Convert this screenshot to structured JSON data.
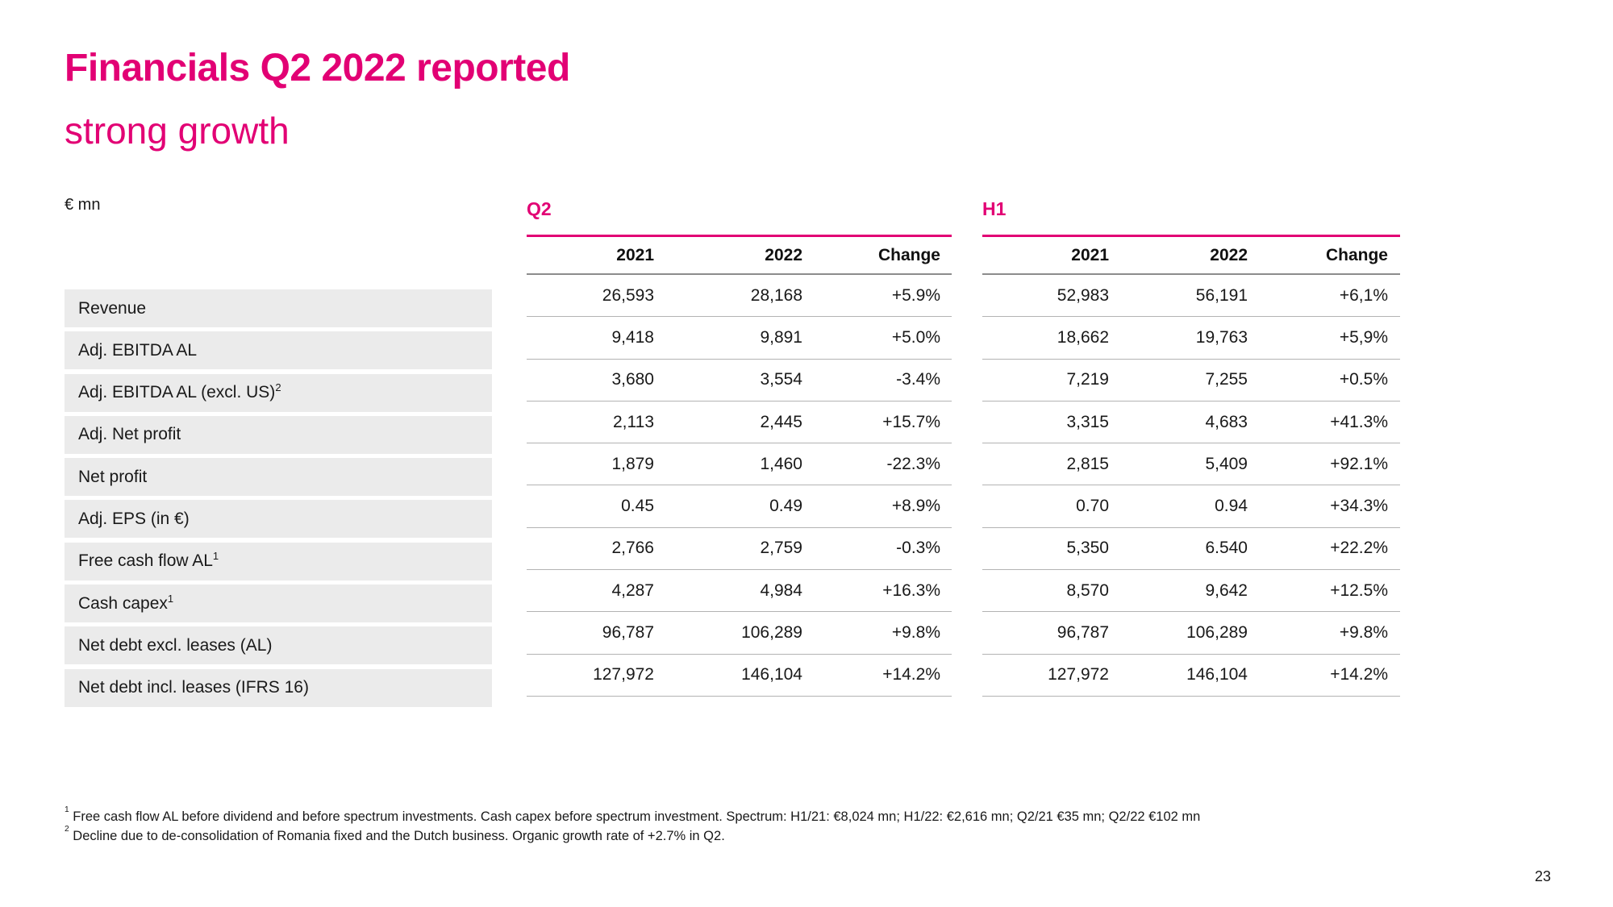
{
  "slide": {
    "title": "Financials Q2 2022 reported",
    "subtitle": "strong growth",
    "unit_label": "€ mn",
    "page_number": "23"
  },
  "colors": {
    "accent_magenta": "#E20074",
    "row_label_background": "#EBEBEB",
    "header_rule_gray": "#8c8c8c",
    "row_separator_gray": "#b3b3b3",
    "text": "#191919"
  },
  "table": {
    "rows": [
      {
        "label": "Revenue"
      },
      {
        "label": "Adj. EBITDA AL"
      },
      {
        "label": "Adj. EBITDA AL (excl. US)",
        "sup": "2"
      },
      {
        "label": "Adj. Net profit"
      },
      {
        "label": "Net profit"
      },
      {
        "label": "Adj. EPS (in €)"
      },
      {
        "label": "Free cash flow AL",
        "sup": "1"
      },
      {
        "label": "Cash capex",
        "sup": "1"
      },
      {
        "label": "Net debt excl. leases (AL)"
      },
      {
        "label": "Net debt incl. leases (IFRS 16)"
      }
    ],
    "sections": [
      {
        "id": "q2",
        "label": "Q2",
        "columns": [
          "2021",
          "2022",
          "Change"
        ],
        "values": [
          [
            "26,593",
            "28,168",
            "+5.9%"
          ],
          [
            "9,418",
            "9,891",
            "+5.0%"
          ],
          [
            "3,680",
            "3,554",
            "-3.4%"
          ],
          [
            "2,113",
            "2,445",
            "+15.7%"
          ],
          [
            "1,879",
            "1,460",
            "-22.3%"
          ],
          [
            "0.45",
            "0.49",
            "+8.9%"
          ],
          [
            "2,766",
            "2,759",
            "-0.3%"
          ],
          [
            "4,287",
            "4,984",
            "+16.3%"
          ],
          [
            "96,787",
            "106,289",
            "+9.8%"
          ],
          [
            "127,972",
            "146,104",
            "+14.2%"
          ]
        ]
      },
      {
        "id": "h1",
        "label": "H1",
        "columns": [
          "2021",
          "2022",
          "Change"
        ],
        "values": [
          [
            "52,983",
            "56,191",
            "+6,1%"
          ],
          [
            "18,662",
            "19,763",
            "+5,9%"
          ],
          [
            "7,219",
            "7,255",
            "+0.5%"
          ],
          [
            "3,315",
            "4,683",
            "+41.3%"
          ],
          [
            "2,815",
            "5,409",
            "+92.1%"
          ],
          [
            "0.70",
            "0.94",
            "+34.3%"
          ],
          [
            "5,350",
            "6.540",
            "+22.2%"
          ],
          [
            "8,570",
            "9,642",
            "+12.5%"
          ],
          [
            "96,787",
            "106,289",
            "+9.8%"
          ],
          [
            "127,972",
            "146,104",
            "+14.2%"
          ]
        ]
      }
    ]
  },
  "footnotes": [
    {
      "sup": "1",
      "text": "Free cash flow AL before dividend and before spectrum investments. Cash capex before spectrum investment. Spectrum: H1/21: €8,024 mn; H1/22: €2,616 mn; Q2/21 €35 mn; Q2/22 €102 mn"
    },
    {
      "sup": "2",
      "text": "Decline due to de-consolidation of Romania fixed and the Dutch business. Organic growth rate of +2.7% in Q2."
    }
  ]
}
